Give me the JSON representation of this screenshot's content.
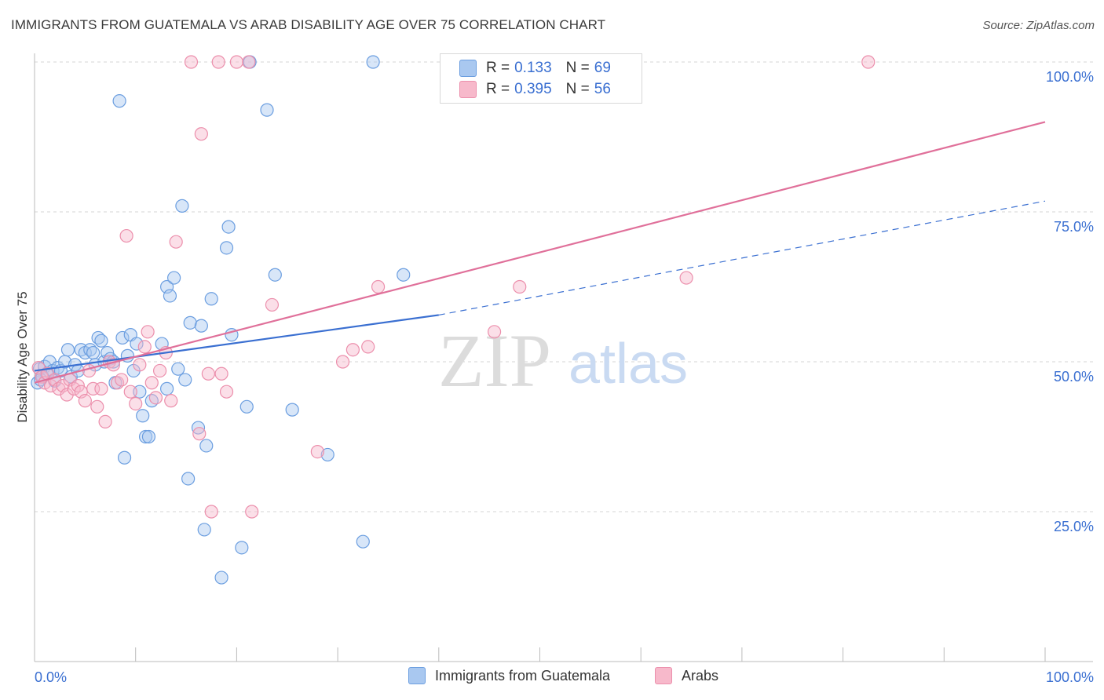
{
  "title": "IMMIGRANTS FROM GUATEMALA VS ARAB DISABILITY AGE OVER 75 CORRELATION CHART",
  "source": "Source: ZipAtlas.com",
  "watermark": {
    "zip": "ZIP",
    "atlas": "atlas"
  },
  "colors": {
    "blue_fill": "#a9c8f0",
    "blue_stroke": "#6b9ee0",
    "blue_line": "#3a6fd1",
    "pink_fill": "#f7b9cb",
    "pink_stroke": "#ec8fac",
    "pink_line": "#e0709a",
    "axis_text": "#3a6fd1",
    "grid": "#d6d6d6"
  },
  "legend": {
    "r_label": "R =",
    "n_label": "N =",
    "rows": [
      {
        "r": "0.133",
        "n": "69",
        "series": "blue"
      },
      {
        "r": "0.395",
        "n": "56",
        "series": "pink"
      }
    ]
  },
  "chart_data": {
    "type": "scatter",
    "title": "IMMIGRANTS FROM GUATEMALA VS ARAB DISABILITY AGE OVER 75 CORRELATION CHART",
    "xlabel": "",
    "ylabel": "Disability Age Over 75",
    "xlim": [
      0,
      100
    ],
    "ylim": [
      0,
      100
    ],
    "x_tick_labels": [
      "0.0%",
      "100.0%"
    ],
    "y_tick_labels": [
      "25.0%",
      "50.0%",
      "75.0%",
      "100.0%"
    ],
    "y_ticks": [
      25,
      50,
      75,
      100
    ],
    "grid": true,
    "legend_position": "top-center",
    "series": [
      {
        "name": "Immigrants from Guatemala",
        "color": "#a9c8f0",
        "trend": {
          "x": [
            0,
            40
          ],
          "y": [
            48.5,
            57.8
          ],
          "dashed_to": [
            100,
            76.8
          ]
        },
        "points": [
          [
            0.3,
            46.5
          ],
          [
            0.5,
            48.8
          ],
          [
            0.8,
            47.5
          ],
          [
            1.0,
            49.2
          ],
          [
            1.2,
            48.0
          ],
          [
            1.5,
            50.0
          ],
          [
            1.8,
            48.5
          ],
          [
            2.0,
            46.8
          ],
          [
            2.3,
            49.0
          ],
          [
            2.6,
            48.5
          ],
          [
            3.0,
            50.0
          ],
          [
            3.3,
            52.0
          ],
          [
            3.6,
            47.5
          ],
          [
            4.0,
            49.5
          ],
          [
            4.3,
            48.5
          ],
          [
            4.6,
            52.0
          ],
          [
            5.0,
            51.5
          ],
          [
            5.5,
            52.0
          ],
          [
            5.8,
            51.5
          ],
          [
            6.0,
            49.5
          ],
          [
            6.3,
            54.0
          ],
          [
            6.6,
            53.5
          ],
          [
            6.9,
            50.0
          ],
          [
            7.2,
            51.5
          ],
          [
            7.5,
            50.5
          ],
          [
            7.8,
            50.0
          ],
          [
            8.0,
            46.5
          ],
          [
            8.4,
            93.5
          ],
          [
            8.7,
            54.0
          ],
          [
            8.9,
            34.0
          ],
          [
            9.2,
            51.0
          ],
          [
            9.5,
            54.5
          ],
          [
            9.8,
            48.5
          ],
          [
            10.1,
            53.0
          ],
          [
            10.4,
            45.0
          ],
          [
            10.7,
            41.0
          ],
          [
            11.0,
            37.5
          ],
          [
            11.3,
            37.5
          ],
          [
            11.6,
            43.5
          ],
          [
            12.6,
            53.0
          ],
          [
            13.1,
            62.5
          ],
          [
            13.4,
            61.0
          ],
          [
            13.8,
            64.0
          ],
          [
            14.2,
            48.8
          ],
          [
            13.1,
            45.5
          ],
          [
            14.9,
            47.0
          ],
          [
            14.6,
            76.0
          ],
          [
            15.2,
            30.5
          ],
          [
            15.4,
            56.5
          ],
          [
            16.5,
            56.0
          ],
          [
            16.2,
            39.0
          ],
          [
            17.0,
            36.0
          ],
          [
            16.8,
            22.0
          ],
          [
            17.5,
            60.5
          ],
          [
            18.5,
            14.0
          ],
          [
            19.2,
            72.5
          ],
          [
            19.5,
            54.5
          ],
          [
            19.0,
            69.0
          ],
          [
            20.5,
            19.0
          ],
          [
            21.0,
            42.5
          ],
          [
            21.3,
            100.0
          ],
          [
            23.0,
            92.0
          ],
          [
            23.8,
            64.5
          ],
          [
            25.5,
            42.0
          ],
          [
            29.0,
            34.5
          ],
          [
            32.5,
            20.0
          ],
          [
            33.5,
            100.0
          ],
          [
            36.5,
            64.5
          ],
          [
            0.6,
            47.0
          ]
        ]
      },
      {
        "name": "Arabs",
        "color": "#f7b9cb",
        "trend": {
          "x": [
            0,
            100
          ],
          "y": [
            46.5,
            90.0
          ]
        },
        "points": [
          [
            0.4,
            49.0
          ],
          [
            0.7,
            47.5
          ],
          [
            1.0,
            46.5
          ],
          [
            1.3,
            48.0
          ],
          [
            1.6,
            46.0
          ],
          [
            2.0,
            47.0
          ],
          [
            2.4,
            45.5
          ],
          [
            2.8,
            46.0
          ],
          [
            3.2,
            44.5
          ],
          [
            3.5,
            47.0
          ],
          [
            3.9,
            45.5
          ],
          [
            4.3,
            46.0
          ],
          [
            4.6,
            45.0
          ],
          [
            5.0,
            43.5
          ],
          [
            5.4,
            48.5
          ],
          [
            5.8,
            45.5
          ],
          [
            6.2,
            42.5
          ],
          [
            6.6,
            45.5
          ],
          [
            7.0,
            40.0
          ],
          [
            7.4,
            50.0
          ],
          [
            7.8,
            49.5
          ],
          [
            8.2,
            46.5
          ],
          [
            8.6,
            47.0
          ],
          [
            9.1,
            71.0
          ],
          [
            9.5,
            45.0
          ],
          [
            10.0,
            43.0
          ],
          [
            10.4,
            49.5
          ],
          [
            10.9,
            52.5
          ],
          [
            11.2,
            55.0
          ],
          [
            11.6,
            46.5
          ],
          [
            12.0,
            44.0
          ],
          [
            12.4,
            48.5
          ],
          [
            13.0,
            51.5
          ],
          [
            13.5,
            43.5
          ],
          [
            14.0,
            70.0
          ],
          [
            15.5,
            100.0
          ],
          [
            16.3,
            38.0
          ],
          [
            16.5,
            88.0
          ],
          [
            17.2,
            48.0
          ],
          [
            17.5,
            25.0
          ],
          [
            18.2,
            100.0
          ],
          [
            18.5,
            48.0
          ],
          [
            19.0,
            45.0
          ],
          [
            20.0,
            100.0
          ],
          [
            21.2,
            100.0
          ],
          [
            21.5,
            25.0
          ],
          [
            23.5,
            59.5
          ],
          [
            28.0,
            35.0
          ],
          [
            30.5,
            50.0
          ],
          [
            31.5,
            52.0
          ],
          [
            33.0,
            52.5
          ],
          [
            34.0,
            62.5
          ],
          [
            45.5,
            55.0
          ],
          [
            48.0,
            62.5
          ],
          [
            64.5,
            64.0
          ],
          [
            82.5,
            100.0
          ]
        ]
      }
    ]
  }
}
